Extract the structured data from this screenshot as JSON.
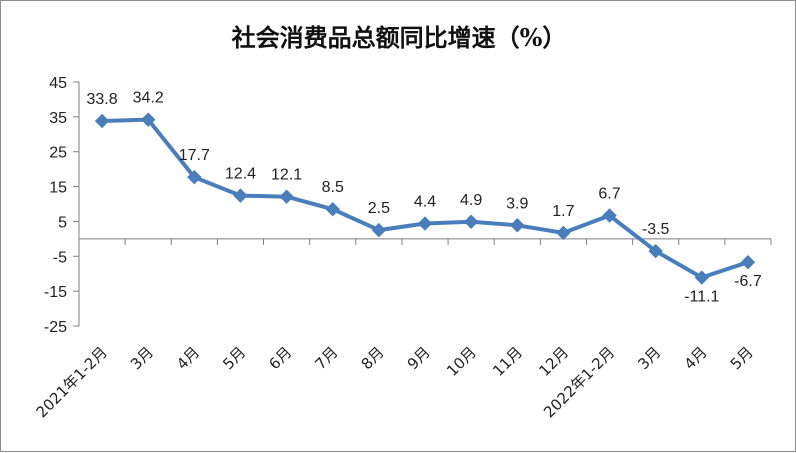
{
  "chart_data": {
    "type": "line",
    "title": "社会消费品总额同比增速（%）",
    "xlabel": "",
    "ylabel": "",
    "ylim": [
      -25,
      45
    ],
    "yticks": [
      "45",
      "35",
      "25",
      "15",
      "5",
      "-5",
      "-15",
      "-25"
    ],
    "ytick_values": [
      45,
      35,
      25,
      15,
      5,
      -5,
      -15,
      -25
    ],
    "categories": [
      "2021年1-2月",
      "3月",
      "4月",
      "5月",
      "6月",
      "7月",
      "8月",
      "9月",
      "10月",
      "11月",
      "12月",
      "2022年1-2月",
      "3月",
      "4月",
      "5月"
    ],
    "values": [
      33.8,
      34.2,
      17.7,
      12.4,
      12.1,
      8.5,
      2.5,
      4.4,
      4.9,
      3.9,
      1.7,
      6.7,
      -3.5,
      -11.1,
      -6.7
    ],
    "data_labels": [
      "33.8",
      "34.2",
      "17.7",
      "12.4",
      "12.1",
      "8.5",
      "2.5",
      "4.4",
      "4.9",
      "3.9",
      "1.7",
      "6.7",
      "-3.5",
      "-11.1",
      "-6.7"
    ],
    "grid": false,
    "legend": "none",
    "colors": {
      "line": "#4a7ebb",
      "marker": "#4a7ebb",
      "axis": "#7f7f7f"
    }
  }
}
